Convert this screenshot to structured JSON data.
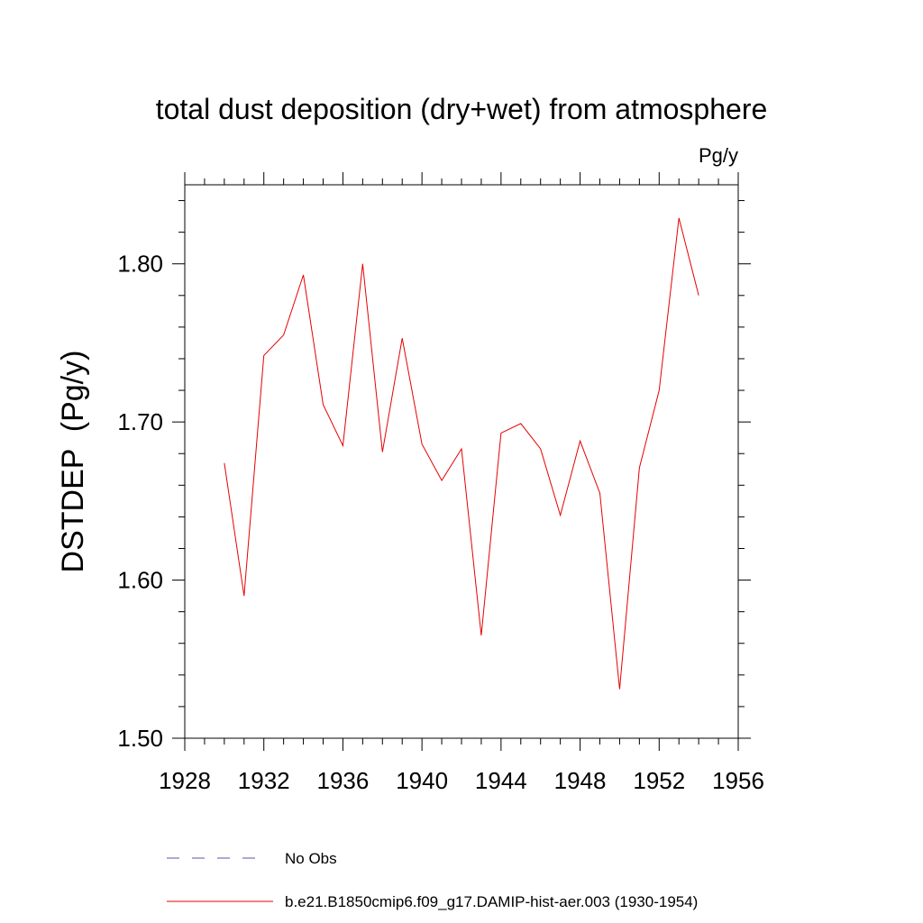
{
  "chart_data": {
    "type": "line",
    "title": "total dust deposition (dry+wet) from atmosphere",
    "units_label": "Pg/y",
    "ylabel": "DSTDEP  (Pg/y)",
    "xlabel": "",
    "xlim": [
      1928,
      1956
    ],
    "ylim": [
      1.5,
      1.85
    ],
    "x_ticks": [
      1928,
      1932,
      1936,
      1940,
      1944,
      1948,
      1952,
      1956
    ],
    "x_tick_labels": [
      "1928",
      "1932",
      "1936",
      "1940",
      "1944",
      "1948",
      "1952",
      "1956"
    ],
    "y_ticks": [
      1.5,
      1.6,
      1.7,
      1.8
    ],
    "y_tick_labels": [
      "1.50",
      "1.60",
      "1.70",
      "1.80"
    ],
    "grid": false,
    "legend_position": "bottom",
    "series": [
      {
        "name": "b.e21.B1850cmip6.f09_g17.DAMIP-hist-aer.003 (1930-1954)",
        "color": "#e60000",
        "style": "solid",
        "x": [
          1930,
          1931,
          1932,
          1933,
          1934,
          1935,
          1936,
          1937,
          1938,
          1939,
          1940,
          1941,
          1942,
          1943,
          1944,
          1945,
          1946,
          1947,
          1948,
          1949,
          1950,
          1951,
          1952,
          1953,
          1954
        ],
        "y": [
          1.674,
          1.59,
          1.742,
          1.755,
          1.793,
          1.711,
          1.685,
          1.8,
          1.681,
          1.753,
          1.686,
          1.663,
          1.683,
          1.565,
          1.693,
          1.699,
          1.683,
          1.641,
          1.688,
          1.655,
          1.531,
          1.671,
          1.72,
          1.829,
          1.78
        ]
      }
    ],
    "legend": [
      {
        "label": "No Obs",
        "color": "#5555aa",
        "style": "dashed"
      },
      {
        "label": "b.e21.B1850cmip6.f09_g17.DAMIP-hist-aer.003 (1930-1954)",
        "color": "#e60000",
        "style": "solid"
      }
    ]
  }
}
